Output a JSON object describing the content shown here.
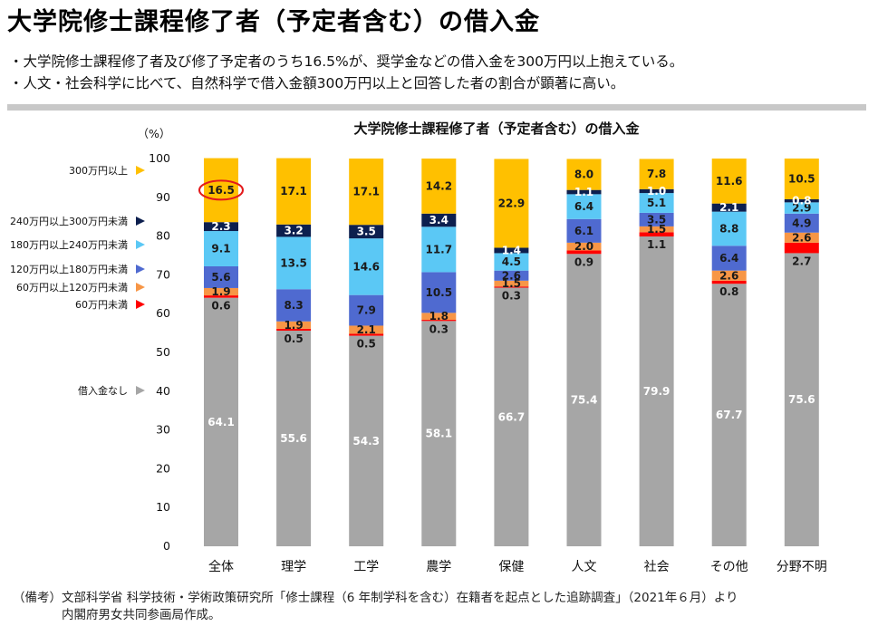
{
  "header": {
    "title": "大学院修士課程修了者（予定者含む）の借入金",
    "bullets": [
      "・大学院修士課程修了者及び修了予定者のうち16.5%が、奨学金などの借入金を300万円以上抱えている。",
      "・人文・社会科学に比べて、自然科学で借入金額300万円以上と回答した者の割合が顕著に高い。"
    ]
  },
  "footnote": {
    "line1": "（備考）文部科学省 科学技術・学術政策研究所「修士課程（6 年制学科を含む）在籍者を起点とした追跡調査」（2021年６月）より",
    "line2": "内閣府男女共同参画局作成。"
  },
  "chart_data": {
    "type": "bar",
    "stacked": true,
    "title": "大学院修士課程修了者（予定者含む）の借入金",
    "ylabel": "（%）",
    "ylim": [
      0,
      100
    ],
    "yticks": [
      "0",
      "10",
      "20",
      "30",
      "40",
      "50",
      "60",
      "70",
      "80",
      "90",
      "100"
    ],
    "grid": false,
    "categories": [
      "全体",
      "理学",
      "工学",
      "農学",
      "保健",
      "人文",
      "社会",
      "その他",
      "分野不明"
    ],
    "series": [
      {
        "name": "借入金なし",
        "color": "#a6a6a6",
        "label_color": "#ffffff",
        "values": [
          64.1,
          55.6,
          54.3,
          58.1,
          66.7,
          75.4,
          79.9,
          67.7,
          75.6
        ]
      },
      {
        "name": "60万円未満",
        "color": "#ff0000",
        "label_color": "#1a1a1a",
        "values": [
          0.6,
          0.5,
          0.5,
          0.3,
          0.3,
          0.9,
          1.1,
          0.8,
          2.7
        ]
      },
      {
        "name": "60万円以上120万円未満",
        "color": "#f79646",
        "label_color": "#1a1a1a",
        "values": [
          1.9,
          1.9,
          2.1,
          1.8,
          1.5,
          2.0,
          1.5,
          2.6,
          2.6
        ]
      },
      {
        "name": "120万円以上180万円未満",
        "color": "#4f6ad0",
        "label_color": "#1a1a1a",
        "values": [
          5.6,
          8.3,
          7.9,
          10.5,
          2.6,
          6.1,
          3.5,
          6.4,
          4.9
        ]
      },
      {
        "name": "180万円以上240万円未満",
        "color": "#5bc8f5",
        "label_color": "#1a1a1a",
        "values": [
          9.1,
          13.5,
          14.6,
          11.7,
          4.5,
          6.4,
          5.1,
          8.8,
          2.9
        ]
      },
      {
        "name": "240万円以上300万円未満",
        "color": "#0d1f4e",
        "label_color": "#ffffff",
        "values": [
          2.3,
          3.2,
          3.5,
          3.4,
          1.4,
          1.1,
          1.0,
          2.1,
          0.8
        ]
      },
      {
        "name": "300万円以上",
        "color": "#ffc000",
        "label_color": "#1a1a1a",
        "values": [
          16.5,
          17.1,
          17.1,
          14.2,
          22.9,
          8.0,
          7.8,
          11.6,
          10.5
        ]
      }
    ],
    "legend": {
      "placement": "left",
      "order": [
        "300万円以上",
        "240万円以上300万円未満",
        "180万円以上240万円未満",
        "120万円以上180万円未満",
        "60万円以上120万円未満",
        "60万円未満",
        "借入金なし"
      ]
    },
    "highlight": {
      "category": "全体",
      "series": "300万円以上",
      "color": "#e31a1c"
    }
  }
}
